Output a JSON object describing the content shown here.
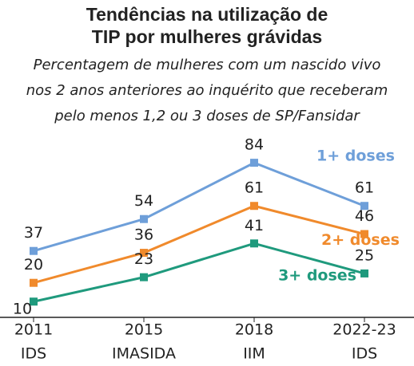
{
  "chart_data": {
    "type": "line",
    "title": [
      "Tendências na utilização de",
      "TIP por mulheres grávidas"
    ],
    "subtitle": [
      "Percentagem de mulheres com um nascido vivo",
      "nos 2 anos anteriores ao inquérito que receberam",
      "pelo menos 1,2 ou 3 doses de SP/Fansidar"
    ],
    "categories": [
      [
        "2011",
        "IDS"
      ],
      [
        "2015",
        "IMASIDA"
      ],
      [
        "2018",
        "IIM"
      ],
      [
        "2022-23",
        "IDS"
      ]
    ],
    "series": [
      {
        "name": "1+ doses",
        "color": "#6e9fd9",
        "values": [
          37,
          54,
          84,
          61
        ]
      },
      {
        "name": "2+ doses",
        "color": "#f08a2c",
        "values": [
          20,
          36,
          61,
          46
        ]
      },
      {
        "name": "3+ doses",
        "color": "#1f9a7d",
        "values": [
          10,
          23,
          41,
          25
        ]
      }
    ],
    "ylim": [
      5,
      90
    ]
  }
}
